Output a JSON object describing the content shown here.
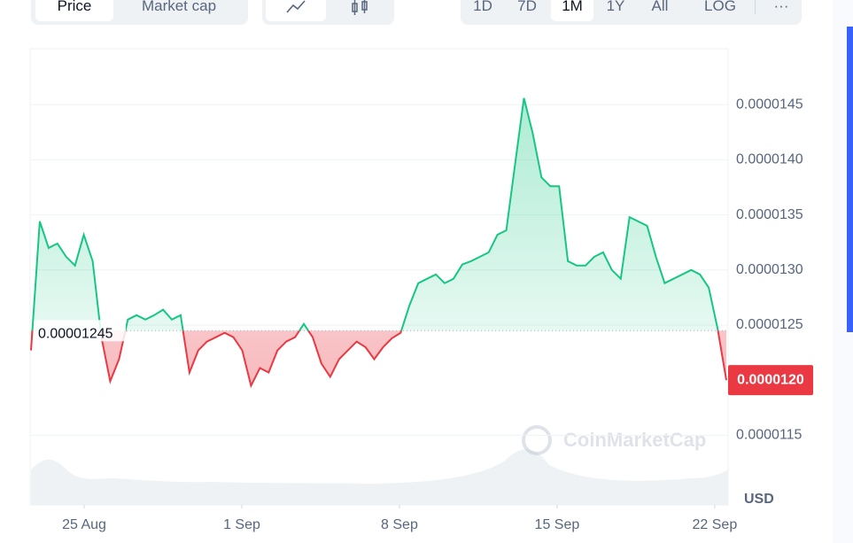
{
  "tabs": [
    "Price",
    "Market cap"
  ],
  "ranges": [
    "1D",
    "7D",
    "1M",
    "1Y",
    "All",
    "LOG"
  ],
  "more": "···",
  "watermark": "CoinMarketCap",
  "currency": "USD",
  "chart_data": {
    "type": "line",
    "values": [
      1.227e-05,
      1.344e-05,
      1.32e-05,
      1.324e-05,
      1.312e-05,
      1.304e-05,
      1.332e-05,
      1.308e-05,
      1.239e-05,
      1.199e-05,
      1.219e-05,
      1.255e-05,
      1.259e-05,
      1.255e-05,
      1.259e-05,
      1.264e-05,
      1.255e-05,
      1.259e-05,
      1.207e-05,
      1.227e-05,
      1.235e-05,
      1.239e-05,
      1.243e-05,
      1.239e-05,
      1.227e-05,
      1.195e-05,
      1.211e-05,
      1.207e-05,
      1.227e-05,
      1.235e-05,
      1.239e-05,
      1.251e-05,
      1.239e-05,
      1.215e-05,
      1.203e-05,
      1.219e-05,
      1.227e-05,
      1.235e-05,
      1.23e-05,
      1.219e-05,
      1.23e-05,
      1.238e-05,
      1.243e-05,
      1.268e-05,
      1.288e-05,
      1.292e-05,
      1.296e-05,
      1.288e-05,
      1.292e-05,
      1.305e-05,
      1.308e-05,
      1.312e-05,
      1.316e-05,
      1.332e-05,
      1.336e-05,
      1.396e-05,
      1.456e-05,
      1.424e-05,
      1.384e-05,
      1.376e-05,
      1.376e-05,
      1.308e-05,
      1.304e-05,
      1.304e-05,
      1.312e-05,
      1.316e-05,
      1.3e-05,
      1.292e-05,
      1.348e-05,
      1.344e-05,
      1.34e-05,
      1.312e-05,
      1.288e-05,
      1.292e-05,
      1.296e-05,
      1.3e-05,
      1.296e-05,
      1.284e-05,
      1.247e-05,
      1.2e-05
    ],
    "xlim": [
      0,
      79
    ],
    "xticks": [
      {
        "value": 6.04,
        "label": "25 Aug"
      },
      {
        "value": 23.95,
        "label": "1 Sep"
      },
      {
        "value": 41.86,
        "label": "8 Sep"
      },
      {
        "value": 59.77,
        "label": "15 Sep"
      },
      {
        "value": 77.68,
        "label": "22 Sep"
      }
    ],
    "ylim": [
      1.09e-05,
      1.5e-05
    ],
    "yticks": [
      1.15e-05,
      1.25e-05,
      {
        "value": 1.3e-05,
        "label": "0.0000130"
      },
      1.35e-05,
      {
        "value": 1.4e-05,
        "label": "0.0000140"
      },
      1.45e-05
    ],
    "baseline": 1.245e-05,
    "current_price": {
      "value": 1.2e-05,
      "label": "0.0000120"
    },
    "color_up": "#16c784",
    "color_down": "#ea3943",
    "grid": true
  }
}
